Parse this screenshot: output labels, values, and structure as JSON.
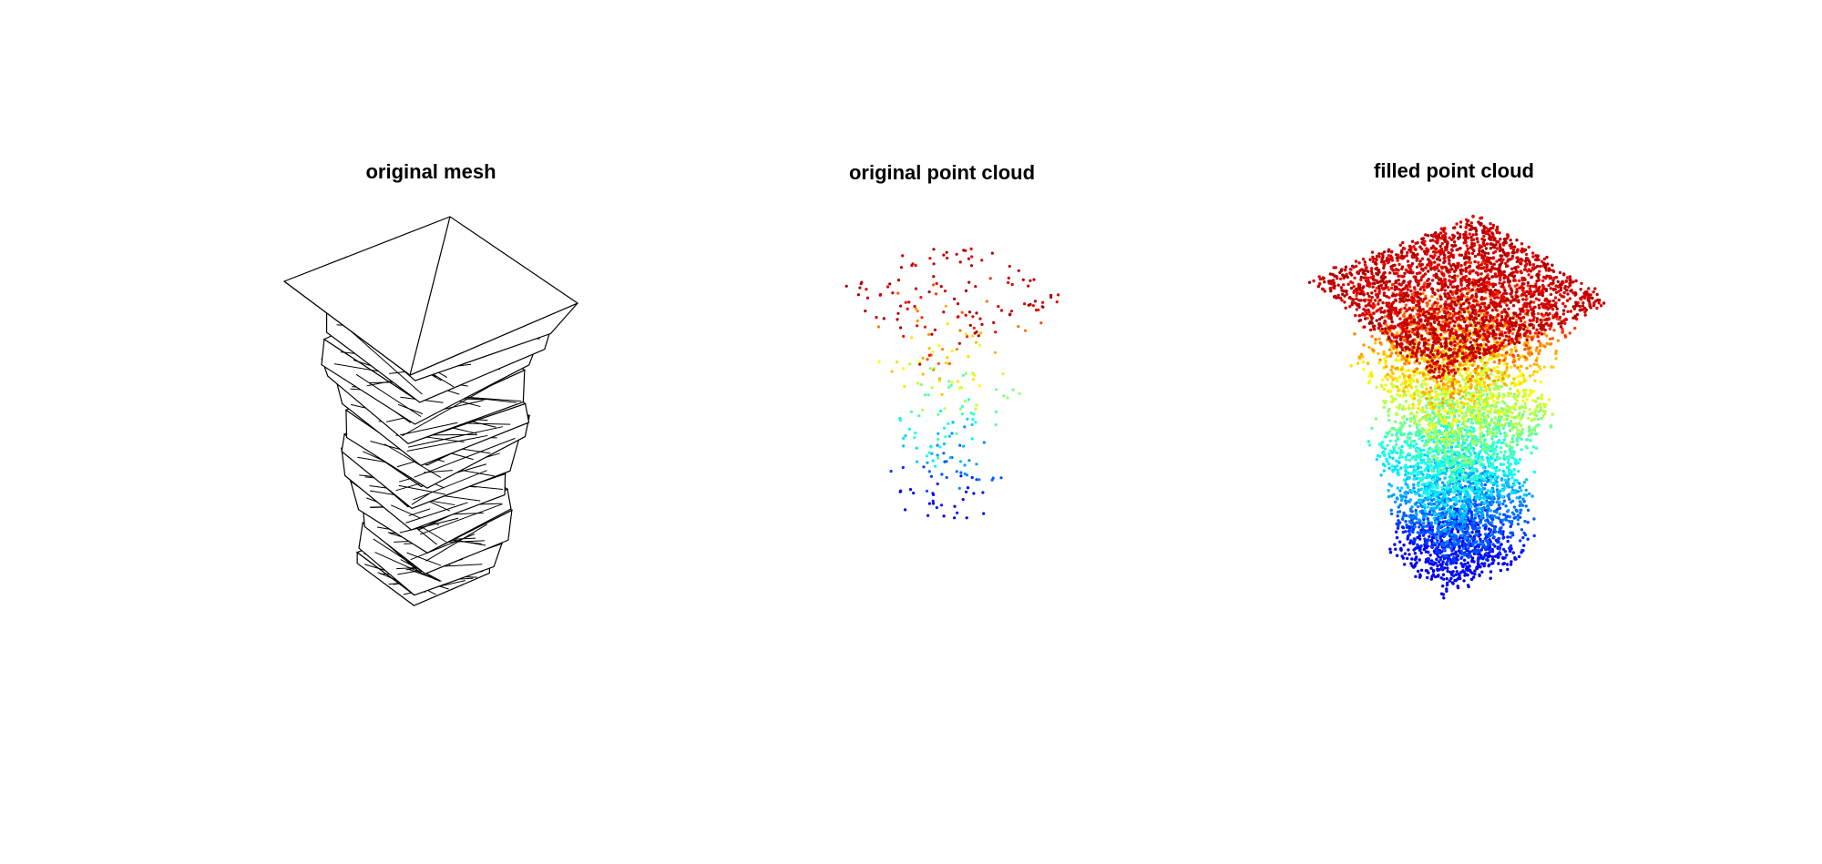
{
  "panels": [
    {
      "title": "original mesh"
    },
    {
      "title": "original point cloud"
    },
    {
      "title": "filled point cloud"
    }
  ]
}
